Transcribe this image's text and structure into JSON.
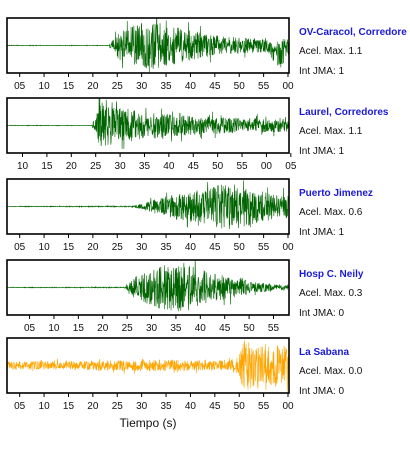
{
  "chart_data": [
    {
      "type": "line",
      "title": "OV-Caracol, Corredore",
      "info": [
        "Acel. Max. 1.1",
        "Int JMA: 1"
      ],
      "color": "#006400",
      "tick_labels": [
        "05",
        "10",
        "15",
        "20",
        "25",
        "30",
        "35",
        "40",
        "45",
        "50",
        "55",
        "00"
      ],
      "tick_first_x": 0.045,
      "tick_step": 0.0865,
      "onset": 0.36,
      "envelope": [
        [
          0,
          0.01
        ],
        [
          0.36,
          0.01
        ],
        [
          0.4,
          0.55
        ],
        [
          0.5,
          0.95
        ],
        [
          0.6,
          0.7
        ],
        [
          0.75,
          0.35
        ],
        [
          0.93,
          0.25
        ],
        [
          0.97,
          0.55
        ],
        [
          1.0,
          0.3
        ]
      ],
      "drift": [
        0.92,
        1.0,
        0.35
      ],
      "seed": 11
    },
    {
      "type": "line",
      "title": "Laurel, Corredores",
      "info": [
        "Acel. Max. 1.1",
        "Int JMA: 1"
      ],
      "color": "#006400",
      "tick_labels": [
        "10",
        "15",
        "20",
        "25",
        "30",
        "35",
        "40",
        "45",
        "50",
        "55",
        "00",
        "05"
      ],
      "tick_first_x": 0.055,
      "tick_step": 0.0865,
      "onset": 0.3,
      "envelope": [
        [
          0,
          0.01
        ],
        [
          0.3,
          0.01
        ],
        [
          0.33,
          0.8
        ],
        [
          0.45,
          0.6
        ],
        [
          0.6,
          0.4
        ],
        [
          0.8,
          0.3
        ],
        [
          1.0,
          0.25
        ]
      ],
      "drift": null,
      "seed": 23
    },
    {
      "type": "line",
      "title": "Puerto Jimenez",
      "info": [
        "Acel. Max. 0.6",
        "Int JMA: 1"
      ],
      "color": "#006400",
      "tick_labels": [
        "05",
        "10",
        "15",
        "20",
        "25",
        "30",
        "35",
        "40",
        "45",
        "50",
        "55",
        "00"
      ],
      "tick_first_x": 0.045,
      "tick_step": 0.0865,
      "onset": 0.45,
      "envelope": [
        [
          0,
          0.01
        ],
        [
          0.45,
          0.02
        ],
        [
          0.55,
          0.35
        ],
        [
          0.7,
          0.7
        ],
        [
          0.8,
          0.9
        ],
        [
          0.9,
          0.6
        ],
        [
          1.0,
          0.45
        ]
      ],
      "drift": null,
      "seed": 37
    },
    {
      "type": "line",
      "title": "Hosp C. Neily",
      "info": [
        "Acel. Max. 0.3",
        "Int JMA: 0"
      ],
      "color": "#006400",
      "tick_labels": [
        "05",
        "10",
        "15",
        "20",
        "25",
        "30",
        "35",
        "40",
        "45",
        "50",
        "55"
      ],
      "tick_first_x": 0.08,
      "tick_step": 0.0865,
      "onset": 0.42,
      "envelope": [
        [
          0,
          0.01
        ],
        [
          0.42,
          0.02
        ],
        [
          0.45,
          0.4
        ],
        [
          0.55,
          0.85
        ],
        [
          0.63,
          0.95
        ],
        [
          0.75,
          0.5
        ],
        [
          0.88,
          0.2
        ],
        [
          1.0,
          0.1
        ]
      ],
      "drift": null,
      "seed": 51
    },
    {
      "type": "line",
      "title": "La Sabana",
      "info": [
        "Acel. Max. 0.0",
        "Int JMA: 0"
      ],
      "color": "#ffa500",
      "tick_labels": [
        "05",
        "10",
        "15",
        "20",
        "25",
        "30",
        "35",
        "40",
        "45",
        "50",
        "55",
        "00"
      ],
      "tick_first_x": 0.045,
      "tick_step": 0.0865,
      "onset": 0.0,
      "envelope": [
        [
          0,
          0.15
        ],
        [
          0.3,
          0.18
        ],
        [
          0.5,
          0.22
        ],
        [
          0.75,
          0.18
        ],
        [
          0.82,
          0.3
        ],
        [
          0.84,
          0.95
        ],
        [
          0.95,
          0.8
        ],
        [
          1.0,
          0.7
        ]
      ],
      "drift": null,
      "seed": 73
    }
  ],
  "xlabel": "Tiempo (s)"
}
